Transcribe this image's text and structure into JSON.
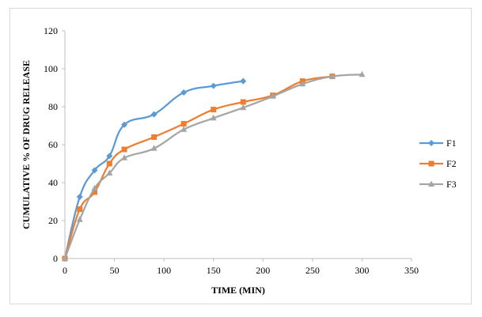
{
  "chart_data": {
    "type": "line",
    "title": "",
    "xlabel": "TIME (MIN)",
    "ylabel": "CUMULATIVE % OF DRUG RELEASE",
    "xlim": [
      0,
      350
    ],
    "ylim": [
      0,
      120
    ],
    "xticks": [
      0,
      50,
      100,
      150,
      200,
      250,
      300,
      350
    ],
    "yticks": [
      0,
      20,
      40,
      60,
      80,
      100,
      120
    ],
    "grid": false,
    "legend_position": "right",
    "series": [
      {
        "name": "F1",
        "color": "#5b9bd5",
        "marker": "diamond",
        "x": [
          0,
          15,
          30,
          45,
          60,
          90,
          120,
          150,
          180
        ],
        "y": [
          0,
          32.5,
          46.5,
          54,
          70.5,
          76,
          87.5,
          91,
          93.5
        ]
      },
      {
        "name": "F2",
        "color": "#ed7d31",
        "marker": "square",
        "x": [
          0,
          15,
          30,
          45,
          60,
          90,
          120,
          150,
          180,
          210,
          240,
          270
        ],
        "y": [
          0,
          26,
          35,
          50,
          57.5,
          64,
          71,
          78.5,
          82.5,
          86,
          93.5,
          96
        ]
      },
      {
        "name": "F3",
        "color": "#a5a5a5",
        "marker": "triangle",
        "x": [
          0,
          15,
          30,
          45,
          60,
          90,
          120,
          150,
          180,
          210,
          240,
          270,
          300
        ],
        "y": [
          0,
          20.5,
          37,
          45,
          53,
          58,
          68,
          74,
          79.5,
          85.5,
          92,
          96,
          97
        ]
      }
    ]
  }
}
